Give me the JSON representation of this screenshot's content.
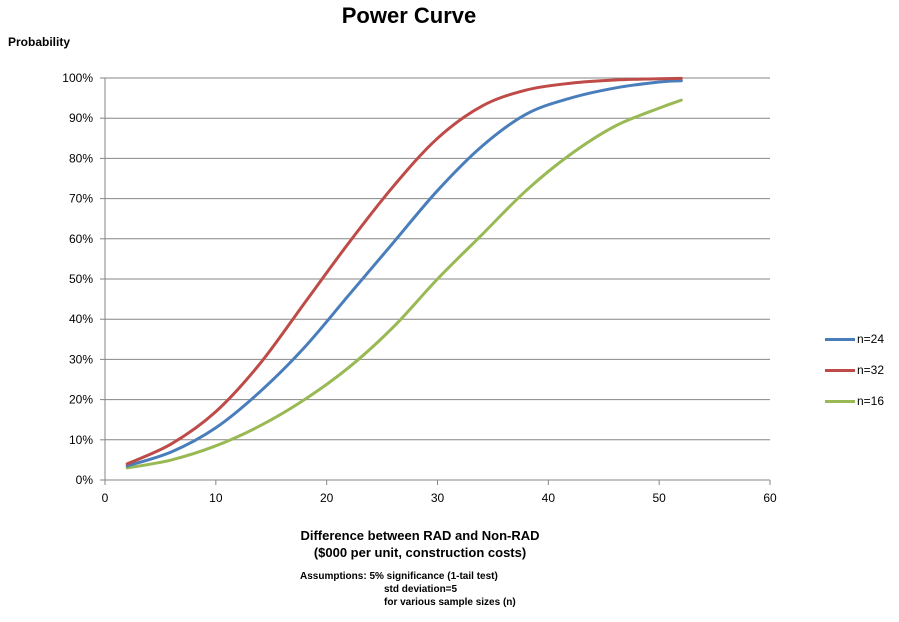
{
  "chart_data": {
    "type": "line",
    "title": "Power Curve",
    "ylabel": "Probability",
    "xlabel_lines": [
      "Difference between RAD and Non-RAD",
      "($000 per unit, construction costs)"
    ],
    "assumptions": [
      "Assumptions: 5% significance (1-tail test)",
      "std deviation=5",
      "for various sample sizes (n)"
    ],
    "xlim": [
      0,
      60
    ],
    "ylim": [
      0,
      1
    ],
    "x_ticks": [
      0,
      10,
      20,
      30,
      40,
      50,
      60
    ],
    "y_ticks": [
      "0%",
      "10%",
      "20%",
      "30%",
      "40%",
      "50%",
      "60%",
      "70%",
      "80%",
      "90%",
      "100%"
    ],
    "grid": "horizontal",
    "legend_position": "right",
    "series": [
      {
        "name": "n=24",
        "color": "#4a7ebb",
        "x": [
          2,
          6,
          10,
          14,
          18,
          22,
          26,
          30,
          34,
          38,
          42,
          46,
          50,
          52
        ],
        "y": [
          0.035,
          0.07,
          0.13,
          0.22,
          0.33,
          0.46,
          0.59,
          0.72,
          0.83,
          0.91,
          0.95,
          0.975,
          0.99,
          0.993
        ]
      },
      {
        "name": "n=32",
        "color": "#be4b48",
        "x": [
          2,
          6,
          10,
          14,
          18,
          22,
          26,
          30,
          34,
          38,
          42,
          46,
          50,
          52
        ],
        "y": [
          0.04,
          0.09,
          0.17,
          0.29,
          0.44,
          0.59,
          0.73,
          0.85,
          0.93,
          0.97,
          0.987,
          0.995,
          0.998,
          0.999
        ]
      },
      {
        "name": "n=16",
        "color": "#98b954",
        "x": [
          2,
          6,
          10,
          14,
          18,
          22,
          26,
          30,
          34,
          38,
          42,
          46,
          50,
          52
        ],
        "y": [
          0.03,
          0.05,
          0.085,
          0.135,
          0.2,
          0.28,
          0.38,
          0.5,
          0.61,
          0.72,
          0.81,
          0.88,
          0.925,
          0.945
        ]
      }
    ]
  }
}
